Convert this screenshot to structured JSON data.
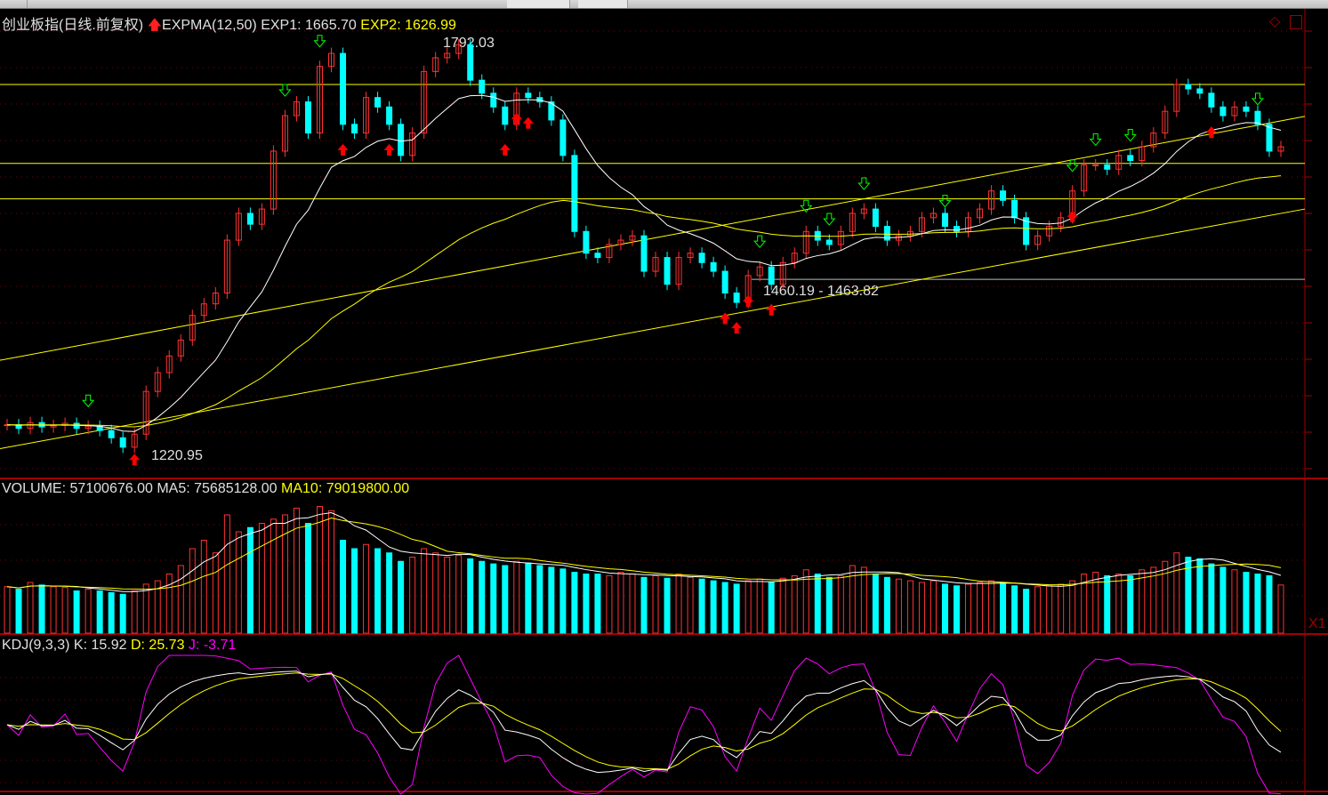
{
  "header": {
    "title": "创业板指(日线.前复权)",
    "indicator": "EXPMA(12,50)",
    "exp1": "EXP1: 1665.70",
    "exp2": "EXP2: 1626.99"
  },
  "volume_header": {
    "volume": "VOLUME: 57100676.00",
    "ma5": "MA5: 75685128.00",
    "ma10": "MA10: 79019800.00"
  },
  "kdj_header": {
    "name": "KDJ(9,3,3)",
    "k": "K: 15.92",
    "d": "D: 25.73",
    "j": "J: -3.71"
  },
  "annotations": {
    "high": "1792.03",
    "low": "1220.95",
    "range": "1460.19 - 1463.82",
    "scale": "X1"
  },
  "colors": {
    "up": "#ff3232",
    "down": "#00ffff",
    "exp1": "#ffffff",
    "exp2": "#ffff00",
    "k": "#ffffff",
    "d": "#ffff00",
    "j": "#ff00ff",
    "grid": "#800000",
    "drawn_lines": "#ffff00"
  },
  "chart_data": {
    "type": "candlestick",
    "price_range": [
      1220.95,
      1792.03
    ],
    "closes": [
      1263,
      1258,
      1266,
      1260,
      1262,
      1265,
      1258,
      1261,
      1255,
      1245,
      1232,
      1250,
      1309,
      1335,
      1358,
      1380,
      1414,
      1430,
      1445,
      1518,
      1555,
      1540,
      1561,
      1641,
      1690,
      1709,
      1666,
      1758,
      1776,
      1678,
      1666,
      1715,
      1702,
      1678,
      1635,
      1666,
      1751,
      1770,
      1776,
      1788,
      1739,
      1721,
      1702,
      1678,
      1721,
      1715,
      1709,
      1684,
      1635,
      1530,
      1500,
      1494,
      1512,
      1518,
      1524,
      1475,
      1494,
      1457,
      1494,
      1500,
      1487,
      1475,
      1445,
      1432,
      1469,
      1481,
      1457,
      1487,
      1500,
      1530,
      1518,
      1512,
      1530,
      1555,
      1561,
      1537,
      1518,
      1524,
      1530,
      1549,
      1555,
      1537,
      1530,
      1549,
      1561,
      1586,
      1573,
      1549,
      1512,
      1524,
      1537,
      1549,
      1586,
      1622,
      1622,
      1616,
      1635,
      1628,
      1647,
      1666,
      1696,
      1733,
      1727,
      1721,
      1702,
      1690,
      1702,
      1696,
      1678,
      1641,
      1647
    ],
    "volumes_millions": [
      55,
      52,
      60,
      57,
      55,
      54,
      50,
      52,
      50,
      48,
      46,
      50,
      58,
      62,
      70,
      80,
      100,
      110,
      95,
      140,
      120,
      125,
      130,
      135,
      140,
      148,
      130,
      150,
      145,
      110,
      100,
      105,
      100,
      95,
      85,
      90,
      100,
      95,
      90,
      92,
      88,
      85,
      82,
      80,
      85,
      83,
      80,
      78,
      76,
      72,
      70,
      70,
      68,
      72,
      70,
      66,
      68,
      65,
      70,
      66,
      64,
      62,
      60,
      58,
      62,
      64,
      60,
      65,
      68,
      75,
      70,
      66,
      68,
      80,
      78,
      70,
      66,
      64,
      62,
      60,
      62,
      58,
      56,
      58,
      60,
      62,
      60,
      56,
      52,
      55,
      56,
      58,
      62,
      70,
      72,
      68,
      70,
      68,
      75,
      78,
      85,
      95,
      90,
      88,
      82,
      78,
      75,
      72,
      70,
      68,
      57
    ],
    "exp1_period": 12,
    "exp2_period": 50,
    "horizontal_lines": [
      1733,
      1624,
      1575
    ],
    "support_line": 1463.82,
    "trend_lines": [
      {
        "start": 1352,
        "end": 1689
      },
      {
        "start": 1230,
        "end": 1561
      }
    ],
    "buy_signals": [
      11,
      29,
      33,
      43,
      44,
      45,
      62,
      63,
      64,
      66,
      92,
      104
    ],
    "sell_signals": [
      7,
      24,
      27,
      65,
      69,
      71,
      74,
      81,
      92,
      94,
      97,
      108
    ]
  }
}
